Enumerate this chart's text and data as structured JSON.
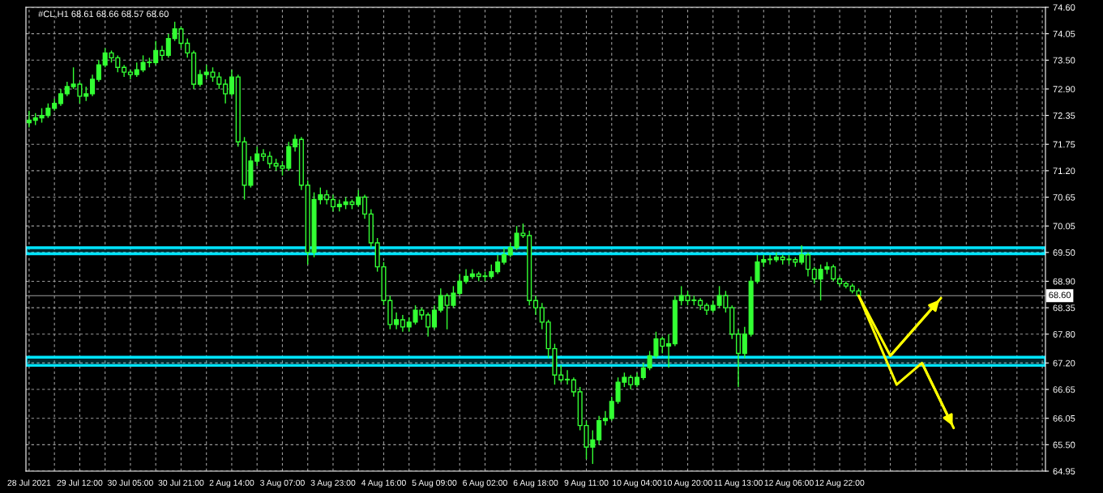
{
  "chart_data": {
    "type": "candlestick",
    "title": "#CL,H1 68.61 68.66 68.57 68.60",
    "categories": [
      "28 Jul 2021",
      null,
      null,
      null,
      null,
      null,
      null,
      null,
      "29 Jul 12:00",
      null,
      null,
      null,
      null,
      null,
      null,
      null,
      "30 Jul 05:00",
      null,
      null,
      null,
      null,
      null,
      null,
      null,
      "30 Jul 21:00",
      null,
      null,
      null,
      null,
      null,
      null,
      null,
      "2 Aug 14:00",
      null,
      null,
      null,
      null,
      null,
      null,
      null,
      "3 Aug 07:00",
      null,
      null,
      null,
      null,
      null,
      null,
      null,
      "3 Aug 23:00",
      null,
      null,
      null,
      null,
      null,
      null,
      null,
      "4 Aug 16:00",
      null,
      null,
      null,
      null,
      null,
      null,
      null,
      "5 Aug 09:00",
      null,
      null,
      null,
      null,
      null,
      null,
      null,
      "6 Aug 02:00",
      null,
      null,
      null,
      null,
      null,
      null,
      null,
      "6 Aug 18:00",
      null,
      null,
      null,
      null,
      null,
      null,
      null,
      "9 Aug 11:00",
      null,
      null,
      null,
      null,
      null,
      null,
      null,
      "10 Aug 04:00",
      null,
      null,
      null,
      null,
      null,
      null,
      null,
      "10 Aug 20:00",
      null,
      null,
      null,
      null,
      null,
      null,
      null,
      "11 Aug 13:00",
      null,
      null,
      null,
      null,
      null,
      null,
      null,
      "12 Aug 06:00",
      null,
      null,
      null,
      null,
      null,
      null,
      null,
      "12 Aug 22:00",
      null,
      null,
      null,
      null,
      null,
      null,
      null,
      null,
      null,
      null,
      null,
      null,
      null,
      null,
      null,
      null,
      null,
      null,
      null,
      null,
      null,
      null,
      null,
      null,
      null,
      null,
      null,
      null,
      null,
      null,
      null,
      null
    ],
    "series": [
      {
        "color": "#33ff33",
        "ohlc": [
          [
            72.2,
            72.45,
            72.1,
            72.25
          ],
          [
            72.25,
            72.4,
            72.15,
            72.3
          ],
          [
            72.3,
            72.5,
            72.2,
            72.35
          ],
          [
            72.35,
            72.6,
            72.3,
            72.5
          ],
          [
            72.5,
            72.7,
            72.45,
            72.6
          ],
          [
            72.6,
            72.9,
            72.55,
            72.8
          ],
          [
            72.8,
            73.05,
            72.75,
            72.95
          ],
          [
            72.95,
            73.35,
            72.9,
            73.0
          ],
          [
            73.0,
            73.05,
            72.6,
            72.75
          ],
          [
            72.75,
            72.95,
            72.65,
            72.8
          ],
          [
            72.8,
            73.2,
            72.75,
            73.1
          ],
          [
            73.1,
            73.5,
            73.05,
            73.4
          ],
          [
            73.4,
            73.75,
            73.35,
            73.65
          ],
          [
            73.65,
            73.7,
            73.45,
            73.55
          ],
          [
            73.55,
            73.6,
            73.25,
            73.35
          ],
          [
            73.35,
            73.4,
            73.15,
            73.25
          ],
          [
            73.25,
            73.3,
            73.1,
            73.2
          ],
          [
            73.2,
            73.45,
            73.15,
            73.3
          ],
          [
            73.3,
            73.6,
            73.25,
            73.45
          ],
          [
            73.45,
            73.55,
            73.35,
            73.45
          ],
          [
            73.45,
            73.9,
            73.4,
            73.7
          ],
          [
            73.7,
            73.8,
            73.5,
            73.6
          ],
          [
            73.6,
            74.05,
            73.55,
            73.95
          ],
          [
            73.95,
            74.3,
            73.9,
            74.15
          ],
          [
            74.15,
            74.2,
            73.75,
            73.85
          ],
          [
            73.85,
            73.95,
            73.55,
            73.65
          ],
          [
            73.65,
            73.7,
            72.9,
            73.0
          ],
          [
            73.0,
            73.3,
            72.95,
            73.2
          ],
          [
            73.2,
            73.4,
            73.1,
            73.25
          ],
          [
            73.25,
            73.35,
            73.05,
            73.15
          ],
          [
            73.15,
            73.25,
            72.9,
            73.0
          ],
          [
            73.0,
            73.1,
            72.6,
            72.8
          ],
          [
            72.8,
            73.3,
            72.75,
            73.15
          ],
          [
            73.15,
            73.2,
            71.7,
            71.8
          ],
          [
            71.8,
            71.9,
            70.6,
            70.9
          ],
          [
            70.9,
            71.5,
            70.85,
            71.4
          ],
          [
            71.4,
            71.7,
            71.3,
            71.55
          ],
          [
            71.55,
            71.65,
            71.4,
            71.5
          ],
          [
            71.5,
            71.6,
            71.25,
            71.35
          ],
          [
            71.35,
            71.45,
            71.2,
            71.3
          ],
          [
            71.3,
            71.4,
            71.1,
            71.25
          ],
          [
            71.25,
            71.8,
            71.2,
            71.7
          ],
          [
            71.7,
            71.95,
            71.6,
            71.85
          ],
          [
            71.85,
            71.9,
            70.8,
            70.9
          ],
          [
            70.9,
            71.0,
            69.25,
            69.5
          ],
          [
            69.5,
            70.75,
            69.4,
            70.6
          ],
          [
            70.6,
            70.85,
            70.5,
            70.7
          ],
          [
            70.7,
            70.8,
            70.5,
            70.6
          ],
          [
            70.6,
            70.7,
            70.35,
            70.45
          ],
          [
            70.45,
            70.6,
            70.35,
            70.5
          ],
          [
            70.5,
            70.65,
            70.4,
            70.55
          ],
          [
            70.55,
            70.6,
            70.4,
            70.5
          ],
          [
            70.5,
            70.8,
            70.45,
            70.65
          ],
          [
            70.65,
            70.7,
            70.2,
            70.3
          ],
          [
            70.3,
            70.4,
            69.6,
            69.7
          ],
          [
            69.7,
            69.8,
            69.1,
            69.2
          ],
          [
            69.2,
            69.3,
            68.4,
            68.5
          ],
          [
            68.5,
            68.6,
            67.9,
            68.0
          ],
          [
            68.0,
            68.25,
            67.9,
            68.1
          ],
          [
            68.1,
            68.2,
            67.85,
            67.95
          ],
          [
            67.95,
            68.15,
            67.85,
            68.05
          ],
          [
            68.05,
            68.4,
            68.0,
            68.3
          ],
          [
            68.3,
            68.35,
            68.1,
            68.2
          ],
          [
            68.2,
            68.25,
            67.75,
            67.95
          ],
          [
            67.95,
            68.4,
            67.9,
            68.3
          ],
          [
            68.3,
            68.75,
            68.25,
            68.6
          ],
          [
            68.6,
            68.65,
            67.9,
            68.4
          ],
          [
            68.4,
            68.8,
            68.35,
            68.65
          ],
          [
            68.65,
            69.05,
            68.6,
            68.9
          ],
          [
            68.9,
            69.15,
            68.85,
            69.0
          ],
          [
            69.0,
            69.15,
            68.95,
            69.05
          ],
          [
            69.05,
            69.1,
            68.9,
            69.0
          ],
          [
            69.0,
            69.1,
            68.9,
            69.0
          ],
          [
            69.0,
            69.25,
            68.95,
            69.1
          ],
          [
            69.1,
            69.45,
            69.05,
            69.3
          ],
          [
            69.3,
            69.6,
            69.25,
            69.45
          ],
          [
            69.45,
            69.7,
            69.4,
            69.6
          ],
          [
            69.6,
            70.05,
            69.55,
            69.9
          ],
          [
            69.9,
            70.1,
            69.8,
            69.85
          ],
          [
            69.85,
            69.95,
            68.4,
            68.5
          ],
          [
            68.5,
            68.6,
            68.2,
            68.35
          ],
          [
            68.35,
            68.45,
            67.9,
            68.05
          ],
          [
            68.05,
            68.1,
            67.3,
            67.5
          ],
          [
            67.5,
            67.6,
            66.75,
            66.95
          ],
          [
            66.95,
            67.15,
            66.8,
            66.85
          ],
          [
            66.85,
            67.05,
            66.75,
            66.85
          ],
          [
            66.85,
            66.9,
            66.5,
            66.6
          ],
          [
            66.6,
            66.7,
            65.8,
            65.9
          ],
          [
            65.9,
            66.0,
            65.2,
            65.45
          ],
          [
            65.45,
            65.8,
            65.1,
            65.6
          ],
          [
            65.6,
            66.1,
            65.5,
            66.0
          ],
          [
            66.0,
            66.2,
            65.9,
            66.05
          ],
          [
            66.05,
            66.5,
            66.0,
            66.4
          ],
          [
            66.4,
            66.9,
            66.35,
            66.8
          ],
          [
            66.8,
            67.0,
            66.7,
            66.9
          ],
          [
            66.9,
            66.95,
            66.65,
            66.75
          ],
          [
            66.75,
            67.0,
            66.7,
            66.9
          ],
          [
            66.9,
            67.2,
            66.85,
            67.1
          ],
          [
            67.1,
            67.45,
            67.05,
            67.35
          ],
          [
            67.35,
            67.85,
            67.3,
            67.7
          ],
          [
            67.7,
            67.75,
            67.4,
            67.55
          ],
          [
            67.55,
            67.8,
            67.1,
            67.6
          ],
          [
            67.6,
            68.6,
            67.55,
            68.5
          ],
          [
            68.5,
            68.8,
            68.4,
            68.6
          ],
          [
            68.6,
            68.7,
            68.4,
            68.5
          ],
          [
            68.5,
            68.6,
            68.4,
            68.5
          ],
          [
            68.5,
            68.55,
            68.3,
            68.4
          ],
          [
            68.4,
            68.45,
            68.2,
            68.3
          ],
          [
            68.3,
            68.5,
            68.25,
            68.4
          ],
          [
            68.4,
            68.8,
            68.35,
            68.6
          ],
          [
            68.6,
            68.7,
            68.25,
            68.35
          ],
          [
            68.35,
            68.4,
            67.7,
            67.8
          ],
          [
            67.8,
            67.9,
            66.7,
            67.4
          ],
          [
            67.4,
            67.95,
            67.3,
            67.8
          ],
          [
            67.8,
            69.0,
            67.75,
            68.9
          ],
          [
            68.9,
            69.45,
            68.85,
            69.3
          ],
          [
            69.3,
            69.45,
            69.2,
            69.35
          ],
          [
            69.35,
            69.45,
            69.25,
            69.35
          ],
          [
            69.35,
            69.5,
            69.3,
            69.4
          ],
          [
            69.4,
            69.45,
            69.25,
            69.35
          ],
          [
            69.35,
            69.45,
            69.25,
            69.35
          ],
          [
            69.35,
            69.4,
            69.2,
            69.3
          ],
          [
            69.3,
            69.65,
            69.25,
            69.45
          ],
          [
            69.45,
            69.5,
            69.0,
            69.15
          ],
          [
            69.15,
            69.2,
            68.85,
            68.95
          ],
          [
            68.95,
            69.25,
            68.5,
            69.15
          ],
          [
            69.15,
            69.3,
            69.05,
            69.2
          ],
          [
            69.2,
            69.25,
            68.9,
            68.95
          ],
          [
            68.95,
            69.0,
            68.8,
            68.85
          ],
          [
            68.85,
            68.9,
            68.75,
            68.8
          ],
          [
            68.8,
            68.85,
            68.65,
            68.7
          ],
          [
            68.7,
            68.75,
            68.57,
            68.6
          ],
          null,
          null,
          null,
          null,
          null,
          null,
          null,
          null,
          null,
          null,
          null,
          null,
          null,
          null,
          null,
          null,
          null,
          null,
          null,
          null,
          null,
          null,
          null,
          null,
          null,
          null,
          null,
          null,
          null
        ]
      },
      {
        "type": "line",
        "color": "#ffff00",
        "values": [
          null,
          null,
          null,
          null,
          null,
          null,
          null,
          null,
          null,
          null,
          null,
          null,
          null,
          null,
          null,
          null,
          null,
          null,
          null,
          null,
          null,
          null,
          null,
          null,
          null,
          null,
          null,
          null,
          null,
          null,
          null,
          null,
          null,
          null,
          null,
          null,
          null,
          null,
          null,
          null,
          null,
          null,
          null,
          null,
          null,
          null,
          null,
          null,
          null,
          null,
          null,
          null,
          null,
          null,
          null,
          null,
          null,
          null,
          null,
          null,
          null,
          null,
          null,
          null,
          null,
          null,
          null,
          null,
          null,
          null,
          null,
          null,
          null,
          null,
          null,
          null,
          null,
          null,
          null,
          null,
          null,
          null,
          null,
          null,
          null,
          null,
          null,
          null,
          null,
          null,
          null,
          null,
          null,
          null,
          null,
          null,
          null,
          null,
          null,
          null,
          null,
          null,
          null,
          null,
          null,
          null,
          null,
          null,
          null,
          null,
          null,
          null,
          null,
          null,
          null,
          null,
          null,
          null,
          null,
          null,
          null,
          null,
          null,
          null,
          null,
          null,
          null,
          null,
          null,
          null,
          null,
          68.6,
          null,
          null,
          null,
          null,
          67.35,
          null,
          null,
          null,
          null,
          null,
          null,
          null,
          68.55,
          null,
          null,
          null,
          null,
          null,
          null,
          null,
          null,
          null,
          null,
          null,
          null,
          null,
          null,
          null,
          null
        ]
      },
      {
        "type": "line",
        "color": "#ffff00",
        "values": [
          null,
          null,
          null,
          null,
          null,
          null,
          null,
          null,
          null,
          null,
          null,
          null,
          null,
          null,
          null,
          null,
          null,
          null,
          null,
          null,
          null,
          null,
          null,
          null,
          null,
          null,
          null,
          null,
          null,
          null,
          null,
          null,
          null,
          null,
          null,
          null,
          null,
          null,
          null,
          null,
          null,
          null,
          null,
          null,
          null,
          null,
          null,
          null,
          null,
          null,
          null,
          null,
          null,
          null,
          null,
          null,
          null,
          null,
          null,
          null,
          null,
          null,
          null,
          null,
          null,
          null,
          null,
          null,
          null,
          null,
          null,
          null,
          null,
          null,
          null,
          null,
          null,
          null,
          null,
          null,
          null,
          null,
          null,
          null,
          null,
          null,
          null,
          null,
          null,
          null,
          null,
          null,
          null,
          null,
          null,
          null,
          null,
          null,
          null,
          null,
          null,
          null,
          null,
          null,
          null,
          null,
          null,
          null,
          null,
          null,
          null,
          null,
          null,
          null,
          null,
          null,
          null,
          null,
          null,
          null,
          null,
          null,
          null,
          null,
          null,
          null,
          null,
          null,
          null,
          null,
          null,
          68.6,
          null,
          null,
          null,
          null,
          null,
          66.75,
          null,
          null,
          null,
          67.2,
          null,
          null,
          null,
          null,
          65.85,
          null,
          null,
          null,
          null,
          null,
          null,
          null,
          null,
          null,
          null,
          null,
          null,
          null,
          null
        ]
      }
    ],
    "ylim": [
      64.95,
      74.6
    ],
    "yticks": [
      {
        "value": 64.95,
        "label": "64.95"
      },
      {
        "value": 65.5,
        "label": "65.50"
      },
      {
        "value": 66.05,
        "label": "66.05"
      },
      {
        "value": 66.65,
        "label": "66.65"
      },
      {
        "value": 67.2,
        "label": "67.20"
      },
      {
        "value": 67.8,
        "label": "67.80"
      },
      {
        "value": 68.35,
        "label": "68.35"
      },
      {
        "value": 68.9,
        "label": "68.90"
      },
      {
        "value": 69.5,
        "label": "69.50"
      },
      {
        "value": 70.05,
        "label": "70.05"
      },
      {
        "value": 70.65,
        "label": "70.65"
      },
      {
        "value": 71.2,
        "label": "71.20"
      },
      {
        "value": 71.75,
        "label": "71.75"
      },
      {
        "value": 72.35,
        "label": "72.35"
      },
      {
        "value": 72.9,
        "label": "72.90"
      },
      {
        "value": 73.5,
        "label": "73.50"
      },
      {
        "value": 74.05,
        "label": "74.05"
      },
      {
        "value": 74.6,
        "label": "74.60"
      }
    ],
    "ref_lines": [
      {
        "axis": "y",
        "value": 68.6,
        "label": "68.60",
        "color": "#a0a0a0"
      }
    ],
    "bands": [
      {
        "axis": "y",
        "from": 69.47,
        "to": 69.6,
        "color": "#00e5ff"
      },
      {
        "axis": "y",
        "from": 67.15,
        "to": 67.32,
        "color": "#00e5ff"
      }
    ],
    "grid": true,
    "legend": false
  }
}
